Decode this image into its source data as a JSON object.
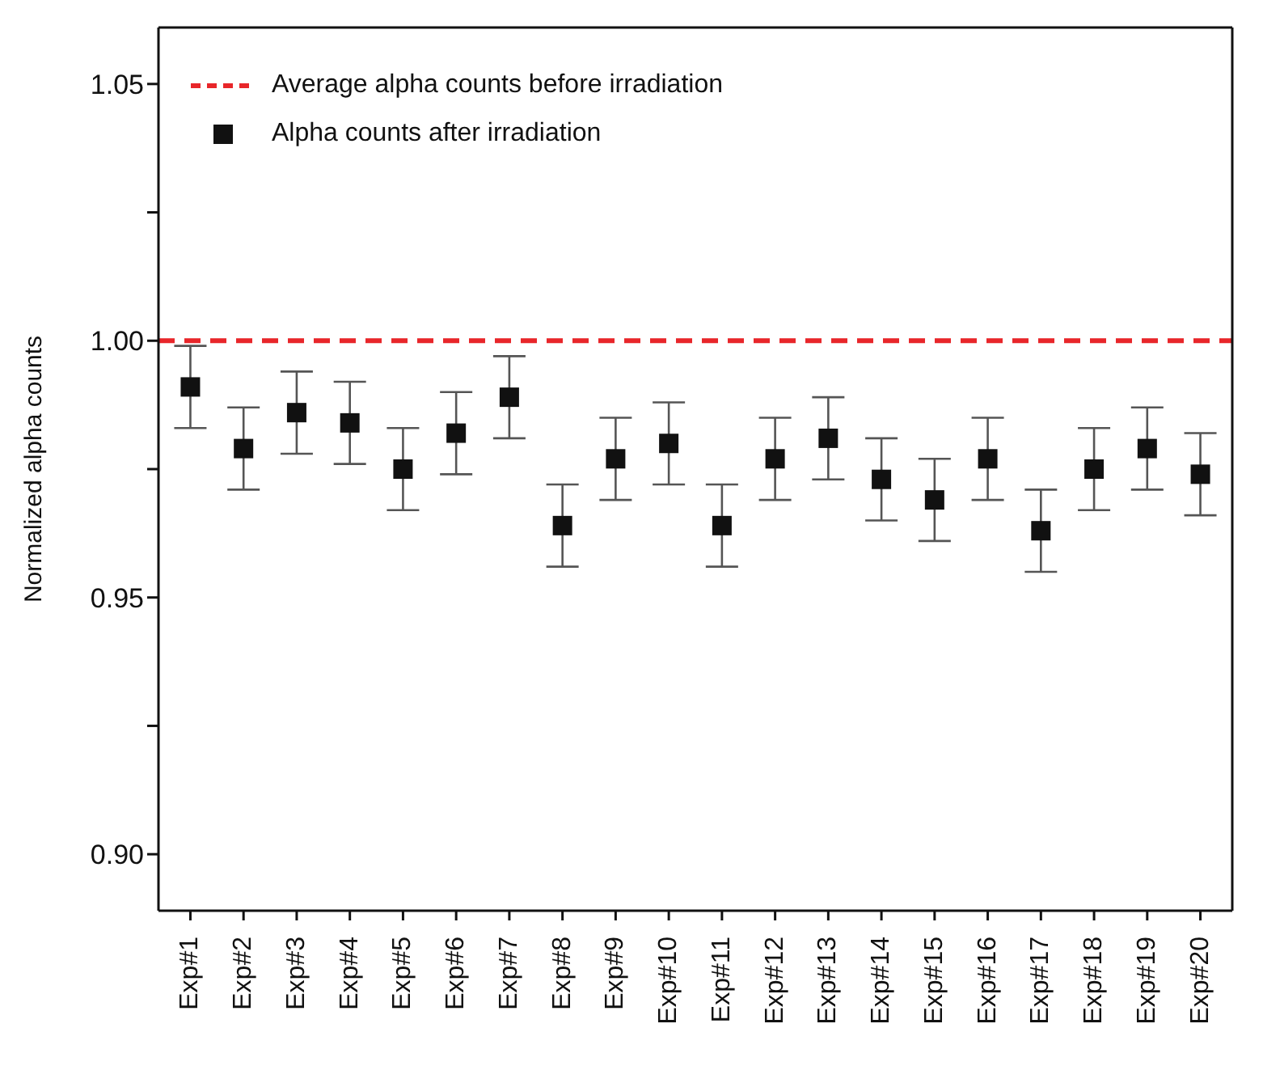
{
  "chart_data": {
    "type": "scatter",
    "ylabel": "Normalized alpha counts",
    "categories": [
      "Exp#1",
      "Exp#2",
      "Exp#3",
      "Exp#4",
      "Exp#5",
      "Exp#6",
      "Exp#7",
      "Exp#8",
      "Exp#9",
      "Exp#10",
      "Exp#11",
      "Exp#12",
      "Exp#13",
      "Exp#14",
      "Exp#15",
      "Exp#16",
      "Exp#17",
      "Exp#18",
      "Exp#19",
      "Exp#20"
    ],
    "series": [
      {
        "name": "Alpha counts after irradiation",
        "color": "#111111",
        "values": [
          0.991,
          0.979,
          0.986,
          0.984,
          0.975,
          0.982,
          0.989,
          0.964,
          0.977,
          0.98,
          0.964,
          0.977,
          0.981,
          0.973,
          0.969,
          0.977,
          0.963,
          0.975,
          0.979,
          0.974
        ],
        "errors": [
          0.008,
          0.008,
          0.008,
          0.008,
          0.008,
          0.008,
          0.008,
          0.008,
          0.008,
          0.008,
          0.008,
          0.008,
          0.008,
          0.008,
          0.008,
          0.008,
          0.008,
          0.008,
          0.008,
          0.008
        ]
      }
    ],
    "ylim": [
      0.889,
      1.061
    ],
    "yticks": [
      {
        "value": 0.9,
        "label": "0.90"
      },
      {
        "value": 0.925,
        "label": null
      },
      {
        "value": 0.95,
        "label": "0.95"
      },
      {
        "value": 0.975,
        "label": null
      },
      {
        "value": 1.0,
        "label": "1.00"
      },
      {
        "value": 1.025,
        "label": null
      },
      {
        "value": 1.05,
        "label": "1.05"
      }
    ],
    "ref_lines": [
      {
        "axis": "y",
        "value": 1.0,
        "label": "Average alpha counts before irradiation",
        "color": "#e8262a",
        "line_style": "dashed"
      }
    ],
    "marker": "square",
    "legend": "top left"
  }
}
